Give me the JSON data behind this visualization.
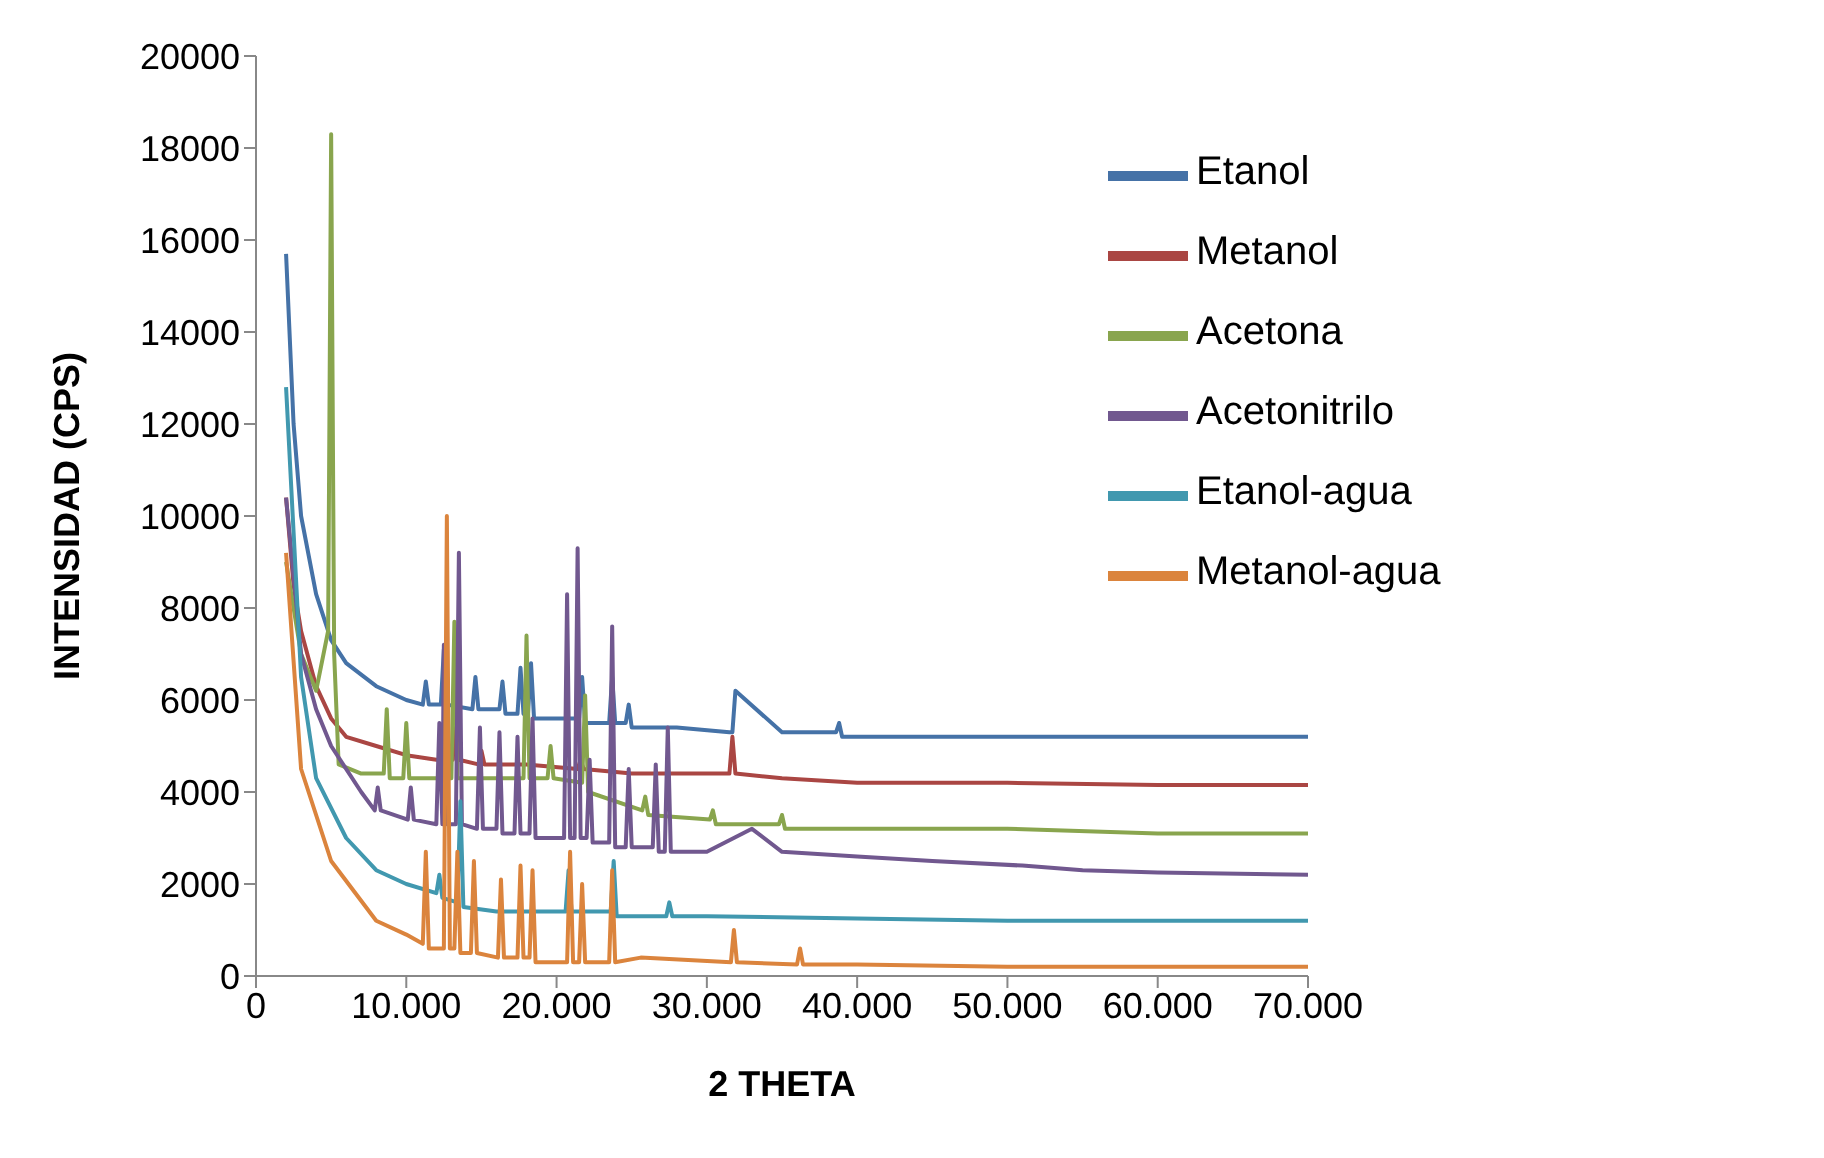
{
  "chart_data": {
    "type": "line",
    "xlabel": "2 THETA",
    "ylabel": "INTENSIDAD (CPS)",
    "xlim": [
      0,
      70000
    ],
    "xticks": [
      0,
      {
        "value": 10000,
        "label": "10.000"
      },
      {
        "value": 20000,
        "label": "20.000"
      },
      {
        "value": 30000,
        "label": "30.000"
      },
      {
        "value": 40000,
        "label": "40.000"
      },
      {
        "value": 50000,
        "label": "50.000"
      },
      {
        "value": 60000,
        "label": "60.000"
      },
      {
        "value": 70000,
        "label": "70.000"
      }
    ],
    "ylim": [
      0,
      20000
    ],
    "yticks": [
      0,
      2000,
      4000,
      6000,
      8000,
      10000,
      12000,
      14000,
      16000,
      18000,
      20000
    ],
    "grid": false,
    "legend": "top right",
    "marker": "none",
    "line_style": "solid",
    "series": [
      {
        "name": "Etanol",
        "color": "#4572a7",
        "x": [
          2000,
          2500,
          3000,
          4000,
          5000,
          6000,
          8000,
          10000,
          11100,
          11300,
          11500,
          12300,
          12500,
          12700,
          14400,
          14600,
          14800,
          16200,
          16400,
          16600,
          17400,
          17600,
          17800,
          18100,
          18300,
          18500,
          21500,
          21700,
          21900,
          23500,
          23700,
          23900,
          24600,
          24800,
          25000,
          28000,
          31500,
          31700,
          31900,
          35000,
          38600,
          38800,
          39000,
          45000,
          50000,
          60000,
          70000
        ],
        "values": [
          15700,
          12000,
          10000,
          8300,
          7300,
          6800,
          6300,
          6000,
          5900,
          6400,
          5900,
          5900,
          7100,
          5900,
          5800,
          6500,
          5800,
          5800,
          6400,
          5700,
          5700,
          6700,
          5700,
          5700,
          6800,
          5600,
          5600,
          6500,
          5500,
          5500,
          6500,
          5500,
          5500,
          5900,
          5400,
          5400,
          5300,
          5300,
          6200,
          5300,
          5300,
          5500,
          5200,
          5200,
          5200,
          5200,
          5200
        ]
      },
      {
        "name": "Metanol",
        "color": "#aa4643",
        "x": [
          2000,
          2500,
          3000,
          4000,
          5000,
          6000,
          8000,
          10000,
          12000,
          13100,
          13300,
          13500,
          14800,
          15000,
          15200,
          18000,
          21400,
          21600,
          21800,
          25000,
          31500,
          31700,
          31900,
          35000,
          40000,
          50000,
          60000,
          70000
        ],
        "values": [
          10400,
          8500,
          7500,
          6300,
          5600,
          5200,
          5000,
          4800,
          4700,
          4700,
          7000,
          4700,
          4600,
          4900,
          4600,
          4600,
          4500,
          4700,
          4500,
          4400,
          4400,
          5200,
          4400,
          4300,
          4200,
          4200,
          4150,
          4150
        ]
      },
      {
        "name": "Acetona",
        "color": "#89a54e",
        "x": [
          2000,
          3000,
          4000,
          4800,
          5000,
          5200,
          5500,
          7000,
          8500,
          8700,
          8900,
          9800,
          10000,
          10200,
          12000,
          13000,
          13200,
          13400,
          15000,
          17800,
          18000,
          18200,
          19400,
          19600,
          19800,
          21700,
          21900,
          22100,
          25700,
          25900,
          26100,
          30200,
          30400,
          30600,
          34800,
          35000,
          35200,
          40000,
          50000,
          60000,
          70000
        ],
        "values": [
          9000,
          7000,
          6200,
          7500,
          18300,
          7000,
          4600,
          4400,
          4400,
          5800,
          4300,
          4300,
          5500,
          4300,
          4300,
          4300,
          7700,
          4300,
          4300,
          4300,
          7400,
          4300,
          4300,
          5000,
          4300,
          4200,
          6100,
          4000,
          3600,
          3900,
          3500,
          3400,
          3600,
          3300,
          3300,
          3500,
          3200,
          3200,
          3200,
          3100,
          3100
        ]
      },
      {
        "name": "Acetonitrilo",
        "color": "#71588f",
        "x": [
          2000,
          3000,
          4000,
          5000,
          7000,
          7900,
          8100,
          8300,
          10100,
          10300,
          10500,
          12000,
          12200,
          12400,
          12500,
          12700,
          13300,
          13500,
          13700,
          14700,
          14900,
          15100,
          16000,
          16200,
          16400,
          17200,
          17400,
          17600,
          18200,
          18400,
          18600,
          20500,
          20700,
          20900,
          21200,
          21400,
          21600,
          22000,
          22200,
          22400,
          23500,
          23700,
          23900,
          24600,
          24800,
          25000,
          26400,
          26600,
          26800,
          27200,
          27400,
          27600,
          30000,
          33000,
          35000,
          40000,
          45000,
          51000,
          55000,
          60000,
          70000
        ],
        "values": [
          10400,
          7000,
          5800,
          5000,
          4000,
          3600,
          4100,
          3600,
          3400,
          4100,
          3400,
          3300,
          5500,
          3300,
          7200,
          3300,
          3300,
          9200,
          3300,
          3200,
          5400,
          3200,
          3200,
          5300,
          3100,
          3100,
          5200,
          3100,
          3100,
          5600,
          3000,
          3000,
          8300,
          3000,
          3000,
          9300,
          3000,
          3000,
          4700,
          2900,
          2900,
          7600,
          2800,
          2800,
          4500,
          2800,
          2800,
          4600,
          2700,
          2700,
          5400,
          2700,
          2700,
          3200,
          2700,
          2600,
          2500,
          2400,
          2300,
          2250,
          2200
        ]
      },
      {
        "name": "Etanol-agua",
        "color": "#4198af",
        "x": [
          2000,
          3000,
          4000,
          6000,
          8000,
          10000,
          12000,
          12200,
          12400,
          13400,
          13600,
          13800,
          16000,
          20600,
          20800,
          21000,
          23600,
          23800,
          24000,
          27300,
          27500,
          27700,
          30000,
          40000,
          50000,
          60000,
          70000
        ],
        "values": [
          12800,
          6500,
          4300,
          3000,
          2300,
          2000,
          1800,
          2200,
          1700,
          1600,
          3800,
          1500,
          1400,
          1400,
          2300,
          1400,
          1400,
          2500,
          1300,
          1300,
          1600,
          1300,
          1300,
          1250,
          1200,
          1200,
          1200
        ]
      },
      {
        "name": "Metanol-agua",
        "color": "#db843d",
        "x": [
          2000,
          3000,
          5000,
          8000,
          10000,
          11100,
          11300,
          11500,
          12500,
          12700,
          12900,
          13200,
          13400,
          13600,
          14300,
          14500,
          14700,
          16100,
          16300,
          16500,
          17400,
          17600,
          17800,
          18200,
          18400,
          18600,
          20700,
          20900,
          21100,
          21500,
          21700,
          21900,
          23500,
          23700,
          23900,
          25600,
          31600,
          31800,
          32000,
          36000,
          36200,
          36400,
          40000,
          50000,
          60000,
          70000
        ],
        "values": [
          9200,
          4500,
          2500,
          1200,
          900,
          700,
          2700,
          600,
          600,
          10000,
          600,
          600,
          2700,
          500,
          500,
          2500,
          500,
          400,
          2100,
          400,
          400,
          2400,
          400,
          400,
          2300,
          300,
          300,
          2700,
          300,
          300,
          2000,
          300,
          300,
          2300,
          300,
          400,
          300,
          1000,
          300,
          250,
          600,
          250,
          250,
          200,
          200,
          200
        ]
      }
    ]
  }
}
